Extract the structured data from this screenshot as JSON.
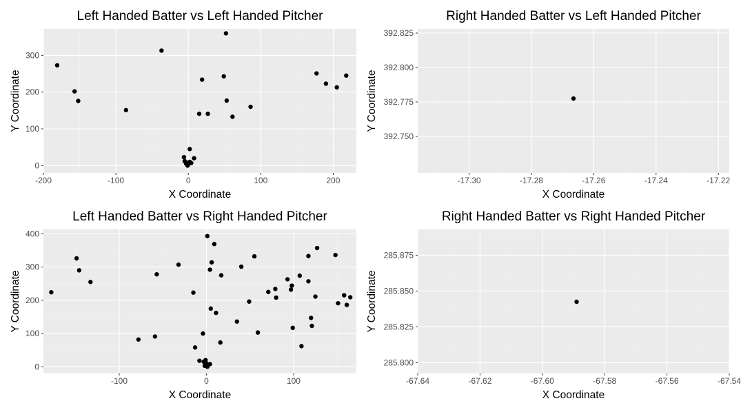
{
  "chart_data": [
    {
      "type": "scatter",
      "title": "Left Handed Batter vs Left Handed Pitcher",
      "xlabel": "X Coordinate",
      "ylabel": "Y Coordinate",
      "xlim": [
        -200,
        232
      ],
      "ylim": [
        -20,
        372
      ],
      "x_ticks": [
        -200,
        -100,
        0,
        100,
        200
      ],
      "y_ticks": [
        0,
        100,
        200,
        300
      ],
      "x_tick_labels": [
        "-200",
        "-100",
        "0",
        "100",
        "200"
      ],
      "y_tick_labels": [
        "0",
        "100",
        "200",
        "300"
      ],
      "grid": true,
      "points": [
        {
          "x": -181,
          "y": 273
        },
        {
          "x": -157,
          "y": 202
        },
        {
          "x": -152,
          "y": 176
        },
        {
          "x": -86,
          "y": 151
        },
        {
          "x": -37,
          "y": 313
        },
        {
          "x": 52,
          "y": 360
        },
        {
          "x": 19,
          "y": 234
        },
        {
          "x": 49,
          "y": 243
        },
        {
          "x": 53,
          "y": 177
        },
        {
          "x": 15,
          "y": 141
        },
        {
          "x": 27,
          "y": 141
        },
        {
          "x": 61,
          "y": 133
        },
        {
          "x": 86,
          "y": 160
        },
        {
          "x": 177,
          "y": 251
        },
        {
          "x": 190,
          "y": 223
        },
        {
          "x": 205,
          "y": 213
        },
        {
          "x": 218,
          "y": 245
        },
        {
          "x": 2,
          "y": 45
        },
        {
          "x": 8,
          "y": 20
        },
        {
          "x": -6,
          "y": 23
        },
        {
          "x": -5,
          "y": 12
        },
        {
          "x": -2,
          "y": 8
        },
        {
          "x": 0,
          "y": 3
        },
        {
          "x": 2,
          "y": 10
        },
        {
          "x": -1,
          "y": 0
        },
        {
          "x": -3,
          "y": 5
        },
        {
          "x": 4,
          "y": 7
        }
      ]
    },
    {
      "type": "scatter",
      "title": "Right Handed Batter vs Left Handed Pitcher",
      "xlabel": "X Coordinate",
      "ylabel": "Y Coordinate",
      "xlim": [
        -17.3165,
        -17.2165
      ],
      "ylim": [
        392.7235,
        392.828
      ],
      "x_ticks": [
        -17.3,
        -17.28,
        -17.26,
        -17.24,
        -17.22
      ],
      "y_ticks": [
        392.75,
        392.775,
        392.8,
        392.825
      ],
      "x_tick_labels": [
        "-17.30",
        "-17.28",
        "-17.26",
        "-17.24",
        "-17.22"
      ],
      "y_tick_labels": [
        "392.750",
        "392.775",
        "392.800",
        "392.825"
      ],
      "grid": true,
      "points": [
        {
          "x": -17.2665,
          "y": 392.7775
        }
      ]
    },
    {
      "type": "scatter",
      "title": "Left Handed Batter vs Right Handed Pitcher",
      "xlabel": "X Coordinate",
      "ylabel": "Y Coordinate",
      "xlim": [
        -187,
        172
      ],
      "ylim": [
        -20,
        413
      ],
      "x_ticks": [
        -100,
        0,
        100
      ],
      "y_ticks": [
        0,
        100,
        200,
        300,
        400
      ],
      "x_tick_labels": [
        "-100",
        "0",
        "100"
      ],
      "y_tick_labels": [
        "0",
        "100",
        "200",
        "300",
        "400"
      ],
      "grid": true,
      "points": [
        {
          "x": -178,
          "y": 224
        },
        {
          "x": -149,
          "y": 326
        },
        {
          "x": -146,
          "y": 290
        },
        {
          "x": -133,
          "y": 255
        },
        {
          "x": -78,
          "y": 82
        },
        {
          "x": -59,
          "y": 91
        },
        {
          "x": -57,
          "y": 278
        },
        {
          "x": -32,
          "y": 307
        },
        {
          "x": -15,
          "y": 223
        },
        {
          "x": -13,
          "y": 58
        },
        {
          "x": -8,
          "y": 18
        },
        {
          "x": -4,
          "y": 100
        },
        {
          "x": 1,
          "y": 393
        },
        {
          "x": 6,
          "y": 314
        },
        {
          "x": 4,
          "y": 292
        },
        {
          "x": 9,
          "y": 369
        },
        {
          "x": 17,
          "y": 275
        },
        {
          "x": 5,
          "y": 175
        },
        {
          "x": 11,
          "y": 162
        },
        {
          "x": 16,
          "y": 73
        },
        {
          "x": 35,
          "y": 136
        },
        {
          "x": 40,
          "y": 301
        },
        {
          "x": 49,
          "y": 196
        },
        {
          "x": 55,
          "y": 332
        },
        {
          "x": 59,
          "y": 103
        },
        {
          "x": 71,
          "y": 225
        },
        {
          "x": 79,
          "y": 234
        },
        {
          "x": 80,
          "y": 208
        },
        {
          "x": 93,
          "y": 263
        },
        {
          "x": 98,
          "y": 244
        },
        {
          "x": 97,
          "y": 232
        },
        {
          "x": 99,
          "y": 117
        },
        {
          "x": 107,
          "y": 274
        },
        {
          "x": 109,
          "y": 62
        },
        {
          "x": 117,
          "y": 333
        },
        {
          "x": 117,
          "y": 257
        },
        {
          "x": 120,
          "y": 147
        },
        {
          "x": 121,
          "y": 123
        },
        {
          "x": 125,
          "y": 211
        },
        {
          "x": 127,
          "y": 357
        },
        {
          "x": 148,
          "y": 336
        },
        {
          "x": 151,
          "y": 191
        },
        {
          "x": 158,
          "y": 215
        },
        {
          "x": 161,
          "y": 186
        },
        {
          "x": 165,
          "y": 209
        },
        {
          "x": -3,
          "y": 15
        },
        {
          "x": 0,
          "y": 10
        },
        {
          "x": 2,
          "y": 5
        },
        {
          "x": -2,
          "y": 3
        },
        {
          "x": 4,
          "y": 8
        },
        {
          "x": 1,
          "y": 0
        },
        {
          "x": -1,
          "y": 20
        }
      ]
    },
    {
      "type": "scatter",
      "title": "Right Handed Batter vs Right Handed Pitcher",
      "xlabel": "X Coordinate",
      "ylabel": "Y Coordinate",
      "xlim": [
        -67.64,
        -67.54
      ],
      "ylim": [
        285.7925,
        285.893
      ],
      "x_ticks": [
        -67.64,
        -67.62,
        -67.6,
        -67.58,
        -67.56,
        -67.54
      ],
      "y_ticks": [
        285.8,
        285.825,
        285.85,
        285.875
      ],
      "x_tick_labels": [
        "-67.64",
        "-67.62",
        "-67.60",
        "-67.58",
        "-67.56",
        "-67.54"
      ],
      "y_tick_labels": [
        "285.800",
        "285.825",
        "285.850",
        "285.875"
      ],
      "grid": true,
      "points": [
        {
          "x": -67.589,
          "y": 285.8425
        }
      ]
    }
  ]
}
